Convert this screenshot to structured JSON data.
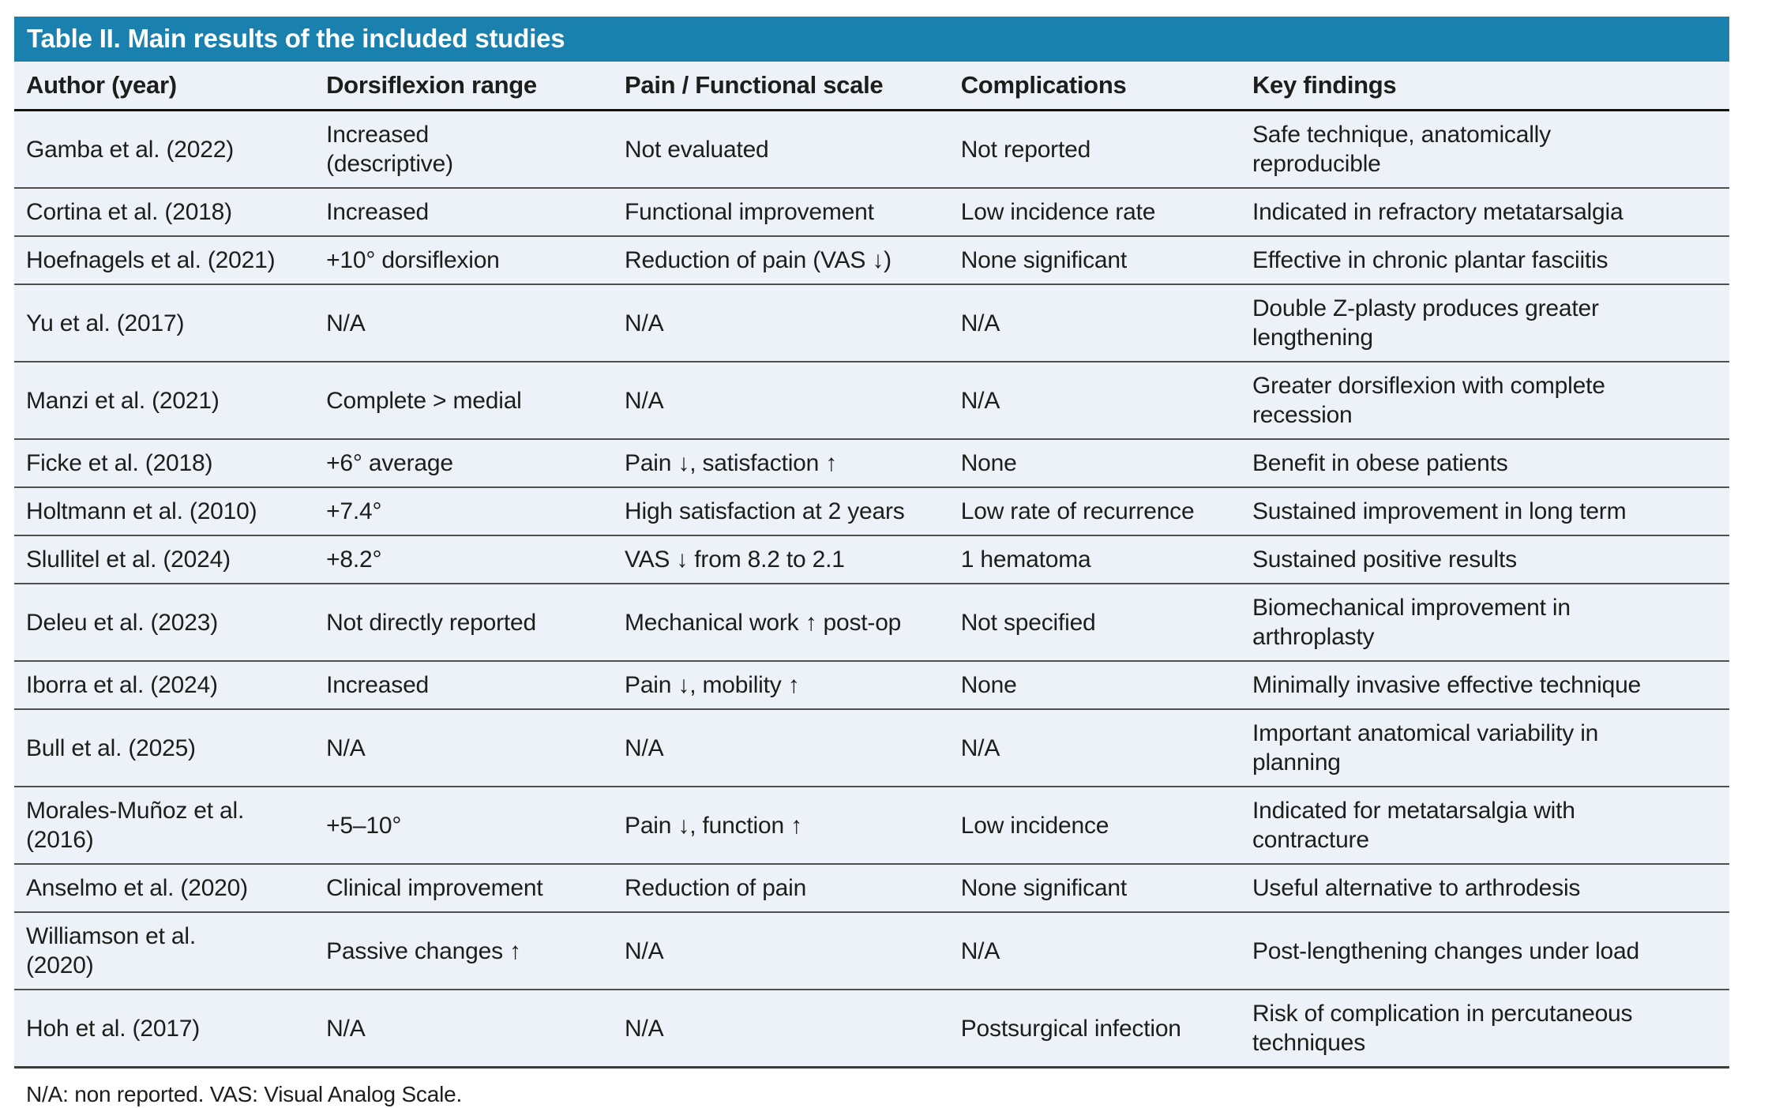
{
  "table": {
    "title": "Table II. Main results of the included studies",
    "columns": [
      {
        "key": "author",
        "label": "Author (year)"
      },
      {
        "key": "dorsiflexion",
        "label": "Dorsiflexion range"
      },
      {
        "key": "pain",
        "label": "Pain / Functional scale"
      },
      {
        "key": "complications",
        "label": "Complications"
      },
      {
        "key": "findings",
        "label": "Key findings"
      }
    ],
    "rows": [
      {
        "author": "Gamba et al. (2022)",
        "dorsiflexion": "Increased\n(descriptive)",
        "pain": "Not evaluated",
        "complications": "Not reported",
        "findings": "Safe technique, anatomically\nreproducible"
      },
      {
        "author": "Cortina et al. (2018)",
        "dorsiflexion": "Increased",
        "pain": "Functional improvement",
        "complications": "Low incidence rate",
        "findings": "Indicated in refractory metatarsalgia"
      },
      {
        "author": "Hoefnagels et al. (2021)",
        "dorsiflexion": "+10° dorsiflexion",
        "pain": "Reduction of pain (VAS ↓)",
        "complications": "None significant",
        "findings": "Effective in chronic plantar fasciitis"
      },
      {
        "author": "Yu et al. (2017)",
        "dorsiflexion": "N/A",
        "pain": "N/A",
        "complications": "N/A",
        "findings": "Double Z-plasty produces greater\nlengthening"
      },
      {
        "author": "Manzi et al. (2021)",
        "dorsiflexion": "Complete > medial",
        "pain": "N/A",
        "complications": "N/A",
        "findings": "Greater dorsiflexion with complete\nrecession"
      },
      {
        "author": "Ficke et al. (2018)",
        "dorsiflexion": "+6° average",
        "pain": "Pain ↓, satisfaction ↑",
        "complications": "None",
        "findings": "Benefit in obese patients"
      },
      {
        "author": "Holtmann et al. (2010)",
        "dorsiflexion": "+7.4°",
        "pain": "High satisfaction at 2 years",
        "complications": "Low rate of recurrence",
        "findings": "Sustained improvement in long term"
      },
      {
        "author": "Slullitel et al. (2024)",
        "dorsiflexion": "+8.2°",
        "pain": "VAS ↓ from 8.2 to 2.1",
        "complications": "1 hematoma",
        "findings": "Sustained positive results"
      },
      {
        "author": "Deleu et al. (2023)",
        "dorsiflexion": "Not directly reported",
        "pain": "Mechanical work ↑ post-op",
        "complications": "Not specified",
        "findings": "Biomechanical improvement in\narthroplasty"
      },
      {
        "author": "Iborra et al. (2024)",
        "dorsiflexion": "Increased",
        "pain": "Pain ↓, mobility ↑",
        "complications": "None",
        "findings": "Minimally invasive effective technique"
      },
      {
        "author": "Bull et al. (2025)",
        "dorsiflexion": "N/A",
        "pain": "N/A",
        "complications": "N/A",
        "findings": "Important anatomical variability in\nplanning"
      },
      {
        "author": "Morales-Muñoz et al.\n(2016)",
        "dorsiflexion": "+5–10°",
        "pain": "Pain ↓, function ↑",
        "complications": "Low incidence",
        "findings": "Indicated for metatarsalgia with\ncontracture"
      },
      {
        "author": "Anselmo et al. (2020)",
        "dorsiflexion": "Clinical improvement",
        "pain": "Reduction of pain",
        "complications": "None significant",
        "findings": "Useful alternative to arthrodesis"
      },
      {
        "author": "Williamson et al.\n(2020)",
        "dorsiflexion": "Passive changes ↑",
        "pain": "N/A",
        "complications": "N/A",
        "findings": "Post-lengthening changes under load"
      },
      {
        "author": "Hoh et al. (2017)",
        "dorsiflexion": "N/A",
        "pain": "N/A",
        "complications": "Postsurgical infection",
        "findings": "Risk of complication in percutaneous\ntechniques"
      }
    ],
    "footnote": "N/A: non reported. VAS: Visual Analog Scale."
  },
  "colors": {
    "accent": "#1a80ad",
    "row_bg": "#edf1f8",
    "text": "#1d1d1b",
    "row_line": "#4f4f4f",
    "strong_line": "#141414",
    "title_text": "#ffffff"
  }
}
